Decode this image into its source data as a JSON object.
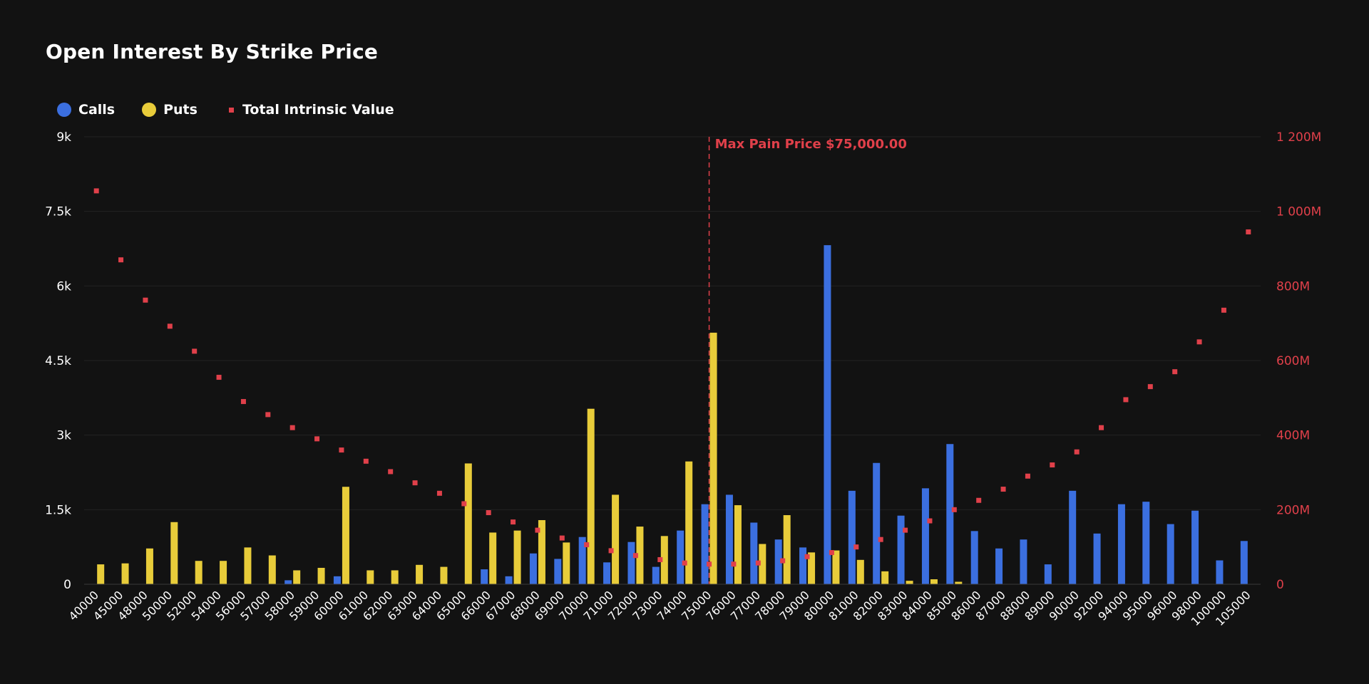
{
  "title": "Open Interest By Strike Price",
  "legend": {
    "calls": "Calls",
    "puts": "Puts",
    "tiv": "Total Intrinsic Value"
  },
  "colors": {
    "calls": "#3b6fe0",
    "puts": "#e8cc3a",
    "tiv": "#e0404a",
    "background": "#121212",
    "grid": "#222222",
    "annotation": "#e0404a"
  },
  "annotation": "Max Pain Price $75,000.00",
  "chart_data": {
    "type": "bar",
    "title": "Open Interest By Strike Price",
    "categories": [
      "40000",
      "45000",
      "48000",
      "50000",
      "52000",
      "54000",
      "56000",
      "57000",
      "58000",
      "59000",
      "60000",
      "61000",
      "62000",
      "63000",
      "64000",
      "65000",
      "66000",
      "67000",
      "68000",
      "69000",
      "70000",
      "71000",
      "72000",
      "73000",
      "74000",
      "75000",
      "76000",
      "77000",
      "78000",
      "79000",
      "80000",
      "81000",
      "82000",
      "83000",
      "84000",
      "85000",
      "86000",
      "87000",
      "88000",
      "89000",
      "90000",
      "92000",
      "94000",
      "95000",
      "96000",
      "98000",
      "100000",
      "105000"
    ],
    "y_left": {
      "ticks": [
        0,
        1500,
        3000,
        4500,
        6000,
        7500,
        9000
      ],
      "tick_labels": [
        "0",
        "1.5k",
        "3k",
        "4.5k",
        "6k",
        "7.5k",
        "9k"
      ],
      "ylim": [
        0,
        9000
      ]
    },
    "y_right": {
      "ticks": [
        0,
        200,
        400,
        600,
        800,
        1000,
        1200
      ],
      "tick_labels": [
        "0",
        "200M",
        "400M",
        "600M",
        "800M",
        "1 000M",
        "1 200M"
      ],
      "ylim": [
        0,
        1200
      ]
    },
    "series": [
      {
        "name": "Calls",
        "axis": "left",
        "values": [
          0,
          0,
          0,
          0,
          0,
          0,
          0,
          0,
          80,
          0,
          160,
          0,
          0,
          0,
          0,
          0,
          300,
          160,
          620,
          510,
          950,
          440,
          850,
          350,
          1080,
          1610,
          1800,
          1240,
          900,
          740,
          6820,
          1880,
          2440,
          1380,
          1930,
          2820,
          1070,
          720,
          900,
          400,
          1880,
          1020,
          1610,
          1660,
          1210,
          1480,
          480,
          870
        ]
      },
      {
        "name": "Puts",
        "axis": "left",
        "values": [
          400,
          420,
          720,
          1250,
          470,
          470,
          740,
          580,
          280,
          330,
          1960,
          280,
          280,
          390,
          350,
          2430,
          1040,
          1080,
          1290,
          840,
          3530,
          1800,
          1160,
          970,
          2470,
          5060,
          1590,
          810,
          1390,
          640,
          680,
          490,
          260,
          70,
          100,
          50,
          0,
          0,
          0,
          0,
          0,
          0,
          0,
          0,
          0,
          0,
          0,
          0
        ]
      },
      {
        "name": "Total Intrinsic Value",
        "axis": "right",
        "type": "scatter",
        "values": [
          1055,
          870,
          762,
          692,
          625,
          555,
          490,
          455,
          420,
          390,
          360,
          330,
          302,
          272,
          244,
          216,
          192,
          167,
          145,
          124,
          106,
          90,
          77,
          66,
          57,
          54,
          54,
          57,
          63,
          74,
          85,
          100,
          120,
          145,
          170,
          200,
          225,
          255,
          290,
          320,
          355,
          420,
          495,
          530,
          570,
          650,
          735,
          945
        ]
      }
    ],
    "annotations": [
      {
        "type": "vline",
        "category": "75000",
        "label": "Max Pain Price $75,000.00"
      }
    ],
    "grid": true,
    "legend_position": "top-left"
  }
}
